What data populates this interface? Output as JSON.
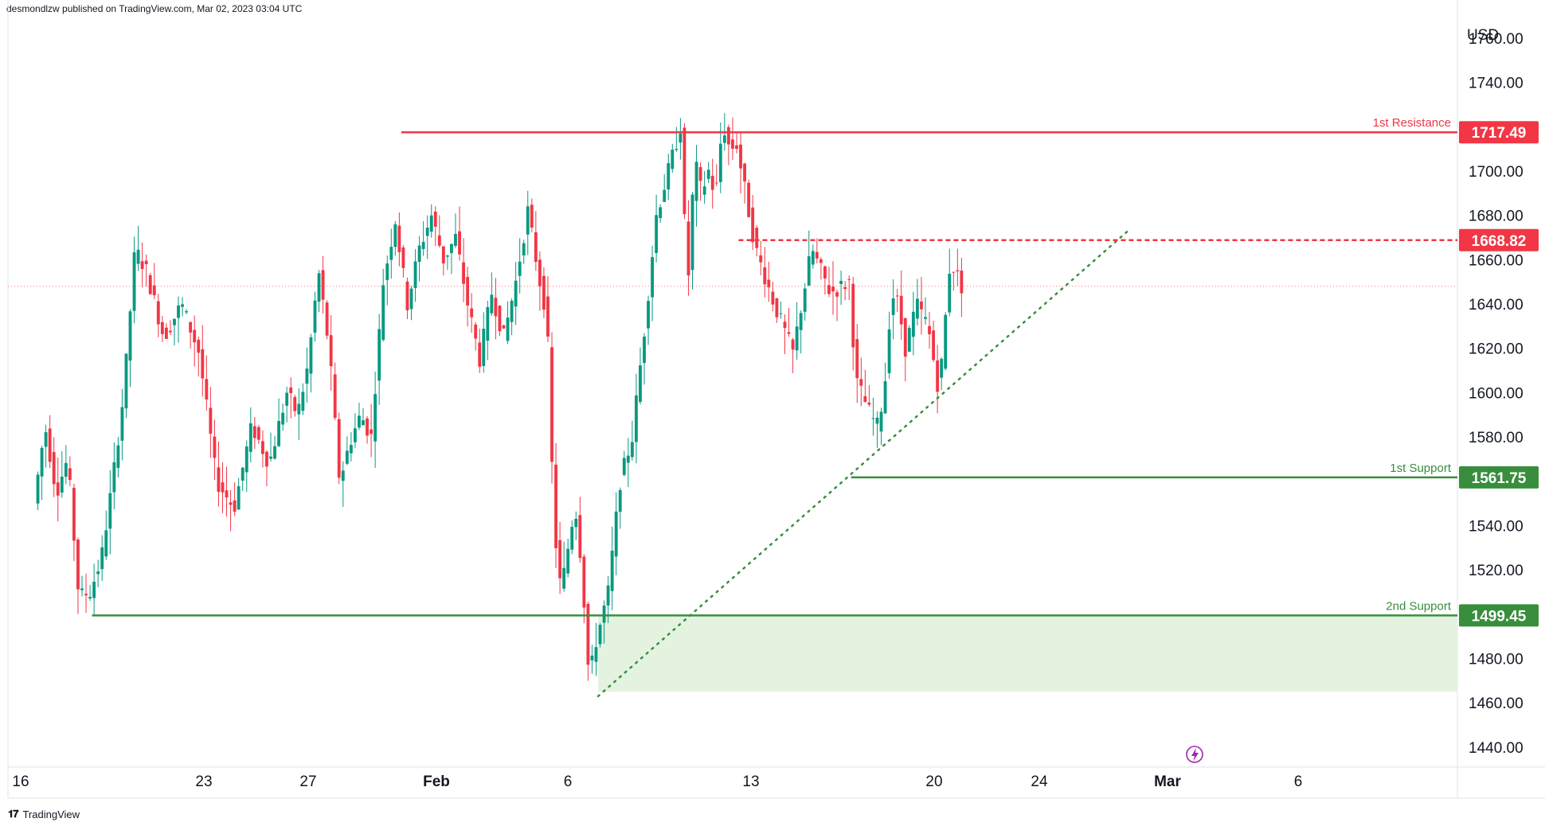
{
  "header": {
    "publisher": "desmondlzw published on TradingView.com, Mar 02, 2023 03:04 UTC"
  },
  "footer": {
    "brand": "TradingView",
    "logo_icon": "tradingview-logo-icon"
  },
  "axis": {
    "currency": "USD"
  },
  "colors": {
    "up": "#26a69a",
    "down": "#ef5350",
    "resistance": "#f23645",
    "support": "#388e3c",
    "zone": "#e3f3e0"
  },
  "chart_data": {
    "type": "candlestick",
    "y_ticks": [
      1760,
      1740,
      1720,
      1700,
      1680,
      1660,
      1640,
      1620,
      1600,
      1580,
      1560,
      1540,
      1520,
      1500,
      1480,
      1460,
      1440
    ],
    "y_tick_labels": [
      "1760.00",
      "1740.00",
      "",
      "1700.00",
      "1680.00",
      "1660.00",
      "1640.00",
      "1620.00",
      "1600.00",
      "1580.00",
      "",
      "1540.00",
      "1520.00",
      "",
      "1480.00",
      "1460.00",
      "1440.00"
    ],
    "ylim": [
      1431,
      1770
    ],
    "x_labels": [
      "16",
      "23",
      "27",
      "Feb",
      "6",
      "13",
      "20",
      "24",
      "Mar",
      "6"
    ],
    "levels": [
      {
        "name": "1st Resistance",
        "value": 1717.49,
        "label": "1717.49",
        "style": "solid",
        "color": "#f23645",
        "x_from": "Feb 2",
        "x_to": "right-edge"
      },
      {
        "name": "",
        "value": 1668.82,
        "label": "1668.82",
        "style": "dashed",
        "color": "#f23645",
        "x_from": "Feb 20",
        "x_to": "right-edge"
      },
      {
        "name": "1st Support",
        "value": 1561.75,
        "label": "1561.75",
        "style": "solid",
        "color": "#388e3c",
        "x_from": "Feb 26",
        "x_to": "right-edge"
      },
      {
        "name": "2nd Support",
        "value": 1499.45,
        "label": "1499.45",
        "style": "solid",
        "color": "#388e3c",
        "x_from": "Jan 18",
        "x_to": "right-edge"
      }
    ],
    "support_zone": {
      "from": 1465,
      "to": 1499.45,
      "x_from": "Feb 13"
    },
    "trendline": {
      "style": "dotted",
      "color": "#388e3c",
      "start": {
        "date": "Feb 13",
        "value": 1463
      },
      "end": {
        "date": "Mar 9",
        "value": 1673
      }
    },
    "last_price_line": 1648,
    "segments": [
      {
        "dates": "Jan 16 - Jan 18",
        "start": 1550,
        "waypoints": [
          1585,
          1555,
          1570,
          1508
        ],
        "end": 1510
      },
      {
        "dates": "Jan 18 - Jan 20",
        "start": 1510,
        "waypoints": [
          1525,
          1560,
          1600,
          1665
        ],
        "end": 1655
      },
      {
        "dates": "Jan 20 - Jan 27",
        "start": 1655,
        "waypoints": [
          1625,
          1640,
          1618,
          1560,
          1548,
          1585,
          1568
        ],
        "end": 1600
      },
      {
        "dates": "Jan 27 - Feb 1",
        "start": 1600,
        "waypoints": [
          1590,
          1612,
          1655,
          1620,
          1560,
          1578,
          1590
        ],
        "end": 1580
      },
      {
        "dates": "Feb 1 - Feb 6",
        "start": 1580,
        "waypoints": [
          1650,
          1678,
          1640,
          1665,
          1680,
          1660
        ],
        "end": 1670
      },
      {
        "dates": "Feb 6 - Feb 9",
        "start": 1670,
        "waypoints": [
          1640,
          1615,
          1645,
          1625,
          1650,
          1682
        ],
        "end": 1650
      },
      {
        "dates": "Feb 9 - Feb 13",
        "start": 1650,
        "waypoints": [
          1635,
          1540,
          1510,
          1530,
          1550,
          1520,
          1470
        ],
        "end": 1488
      },
      {
        "dates": "Feb 13 - Feb 16",
        "start": 1488,
        "waypoints": [
          1510,
          1560,
          1580,
          1628,
          1680,
          1700
        ],
        "end": 1720
      },
      {
        "dates": "Feb 16 - Feb 20",
        "start": 1720,
        "waypoints": [
          1645,
          1705,
          1690,
          1700,
          1688,
          1722,
          1710
        ],
        "end": 1712
      },
      {
        "dates": "Feb 20 - Feb 24",
        "start": 1712,
        "waypoints": [
          1665,
          1640,
          1618,
          1665,
          1645
        ],
        "end": 1650
      },
      {
        "dates": "Feb 24 - Feb 28",
        "start": 1650,
        "waypoints": [
          1605,
          1598,
          1590,
          1585,
          1600,
          1645,
          1640
        ],
        "end": 1620
      },
      {
        "dates": "Feb 28 - Mar 2",
        "start": 1620,
        "waypoints": [
          1640,
          1630,
          1600,
          1660
        ],
        "end": 1648
      }
    ]
  }
}
